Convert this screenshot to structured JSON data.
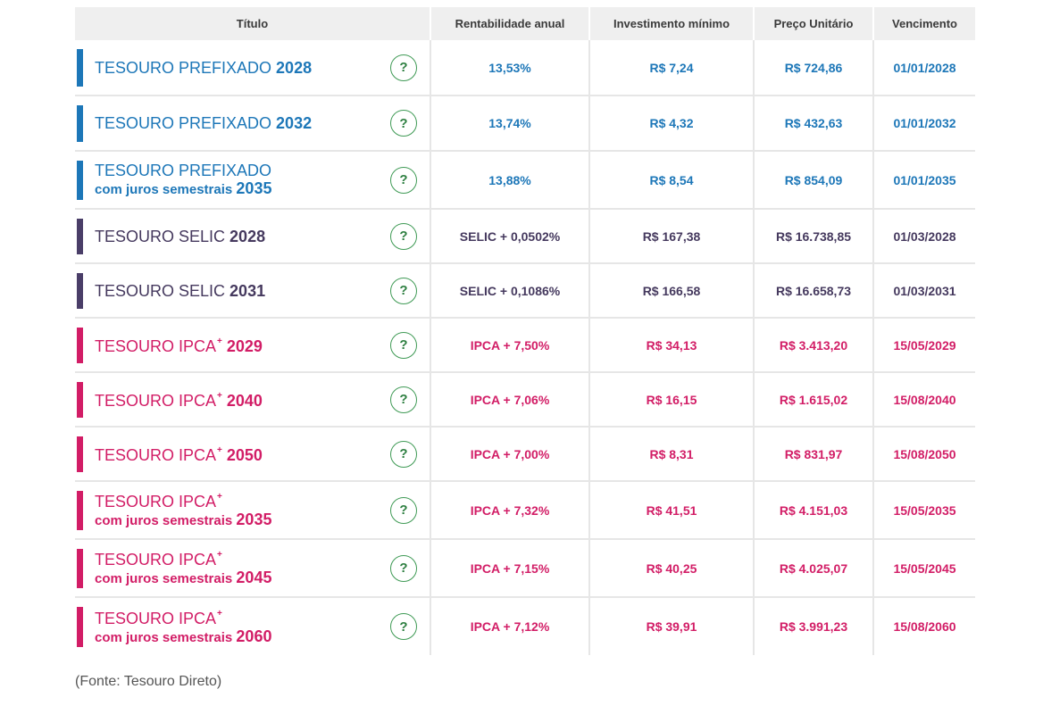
{
  "table": {
    "headers": {
      "titulo": "Título",
      "rentabilidade": "Rentabilidade anual",
      "investimento": "Investimento mínimo",
      "preco": "Preço Unitário",
      "vencimento": "Vencimento"
    },
    "help_icon": "?",
    "rows": [
      {
        "name": "TESOURO PREFIXADO",
        "year": "2028",
        "sup": "",
        "sub": "",
        "rent": "13,53%",
        "inv": "R$ 7,24",
        "price": "R$ 724,86",
        "venc": "01/01/2028"
      },
      {
        "name": "TESOURO PREFIXADO",
        "year": "2032",
        "sup": "",
        "sub": "",
        "rent": "13,74%",
        "inv": "R$ 4,32",
        "price": "R$ 432,63",
        "venc": "01/01/2032"
      },
      {
        "name": "TESOURO PREFIXADO",
        "year": "2035",
        "sup": "",
        "sub": "com juros semestrais",
        "rent": "13,88%",
        "inv": "R$ 8,54",
        "price": "R$ 854,09",
        "venc": "01/01/2035"
      },
      {
        "name": "TESOURO SELIC",
        "year": "2028",
        "sup": "",
        "sub": "",
        "rent": "SELIC + 0,0502%",
        "inv": "R$ 167,38",
        "price": "R$ 16.738,85",
        "venc": "01/03/2028"
      },
      {
        "name": "TESOURO SELIC",
        "year": "2031",
        "sup": "",
        "sub": "",
        "rent": "SELIC + 0,1086%",
        "inv": "R$ 166,58",
        "price": "R$ 16.658,73",
        "venc": "01/03/2031"
      },
      {
        "name": "TESOURO IPCA",
        "year": "2029",
        "sup": "+",
        "sub": "",
        "rent": "IPCA + 7,50%",
        "inv": "R$ 34,13",
        "price": "R$ 3.413,20",
        "venc": "15/05/2029"
      },
      {
        "name": "TESOURO IPCA",
        "year": "2040",
        "sup": "+",
        "sub": "",
        "rent": "IPCA + 7,06%",
        "inv": "R$ 16,15",
        "price": "R$ 1.615,02",
        "venc": "15/08/2040"
      },
      {
        "name": "TESOURO IPCA",
        "year": "2050",
        "sup": "+",
        "sub": "",
        "rent": "IPCA + 7,00%",
        "inv": "R$ 8,31",
        "price": "R$ 831,97",
        "venc": "15/08/2050"
      },
      {
        "name": "TESOURO IPCA",
        "year": "2035",
        "sup": "+",
        "sub": "com juros semestrais",
        "rent": "IPCA + 7,32%",
        "inv": "R$ 41,51",
        "price": "R$ 4.151,03",
        "venc": "15/05/2035"
      },
      {
        "name": "TESOURO IPCA",
        "year": "2045",
        "sup": "+",
        "sub": "com juros semestrais",
        "rent": "IPCA + 7,15%",
        "inv": "R$ 40,25",
        "price": "R$ 4.025,07",
        "venc": "15/05/2045"
      },
      {
        "name": "TESOURO IPCA",
        "year": "2060",
        "sup": "+",
        "sub": "com juros semestrais",
        "rent": "IPCA + 7,12%",
        "inv": "R$ 39,91",
        "price": "R$ 3.991,23",
        "venc": "15/08/2060"
      }
    ]
  },
  "source": "(Fonte: Tesouro Direto)",
  "colors": {
    "prefixado": "#1d77b8",
    "selic": "#45395e",
    "ipca": "#d21d66",
    "help_icon": "#3f9a55",
    "header_bg": "#efefef"
  },
  "icons": {
    "help": "question-circle-icon"
  }
}
